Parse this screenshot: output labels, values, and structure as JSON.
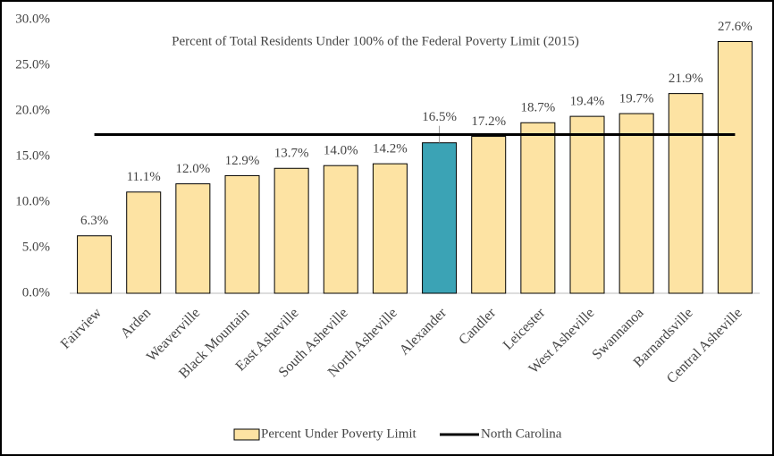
{
  "chart_data": {
    "type": "bar",
    "title": "Percent of Total Residents Under 100% of the Federal Poverty Limit (2015)",
    "categories": [
      "Fairview",
      "Arden",
      "Weaverville",
      "Black Mountain",
      "East Asheville",
      "South Asheville",
      "North Asheville",
      "Alexander",
      "Candler",
      "Leicester",
      "West Asheville",
      "Swannanoa",
      "Barnardsville",
      "Central Asheville"
    ],
    "series": [
      {
        "name": "Percent Under Poverty Limit",
        "color": "#fde3a3",
        "colors": [
          "#fde3a3",
          "#fde3a3",
          "#fde3a3",
          "#fde3a3",
          "#fde3a3",
          "#fde3a3",
          "#fde3a3",
          "#3ba3b5",
          "#fde3a3",
          "#fde3a3",
          "#fde3a3",
          "#fde3a3",
          "#fde3a3",
          "#fde3a3"
        ],
        "values": [
          6.3,
          11.1,
          12.0,
          12.9,
          13.7,
          14.0,
          14.2,
          16.5,
          17.2,
          18.7,
          19.4,
          19.7,
          21.9,
          27.6
        ],
        "value_labels": [
          "6.3%",
          "11.1%",
          "12.0%",
          "12.9%",
          "13.7%",
          "14.0%",
          "14.2%",
          "16.5%",
          "17.2%",
          "18.7%",
          "19.4%",
          "19.7%",
          "21.9%",
          "27.6%"
        ]
      }
    ],
    "reference_line": {
      "name": "North Carolina",
      "value": 17.4,
      "color": "#000000"
    },
    "ylim": [
      0,
      30
    ],
    "yticks": [
      {
        "value": 0,
        "label": "0.0%"
      },
      {
        "value": 5,
        "label": "5.0%"
      },
      {
        "value": 10,
        "label": "10.0%"
      },
      {
        "value": 15,
        "label": "15.0%"
      },
      {
        "value": 20,
        "label": "20.0%"
      },
      {
        "value": 25,
        "label": "25.0%"
      },
      {
        "value": 30,
        "label": "30.0%"
      }
    ],
    "legend": "bottom"
  }
}
